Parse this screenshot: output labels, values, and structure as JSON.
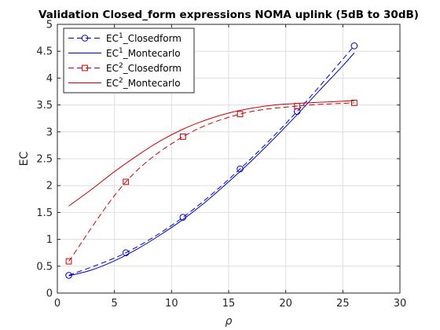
{
  "chart_data": {
    "type": "line",
    "title": "Validation Closed_form expressions NOMA uplink (5dB to 30dB)",
    "xlabel": "ρ",
    "ylabel": "EC",
    "xlim": [
      0,
      30
    ],
    "ylim": [
      0,
      5
    ],
    "xticks": [
      "0",
      "5",
      "10",
      "15",
      "20",
      "25",
      "30"
    ],
    "yticks": [
      "0",
      "0.5",
      "1",
      "1.5",
      "2",
      "2.5",
      "3",
      "3.5",
      "4",
      "4.5",
      "5"
    ],
    "grid": true,
    "legend_position": "top-left",
    "series": [
      {
        "name": "EC1_Closedform",
        "legend_base": "EC",
        "legend_sup": "1",
        "legend_suffix": "_Closedform",
        "color": "#0000cc",
        "line": "dashed",
        "marker": "circle",
        "x": [
          1,
          6,
          11,
          16,
          21,
          26
        ],
        "y": [
          0.33,
          0.75,
          1.41,
          2.31,
          3.38,
          4.6
        ]
      },
      {
        "name": "EC1_Montecarlo",
        "legend_base": "EC",
        "legend_sup": "1",
        "legend_suffix": "_Montecarlo",
        "color": "#0000cc",
        "line": "solid",
        "marker": "none",
        "x": [
          1,
          3,
          5,
          7,
          9,
          11,
          13,
          15,
          17,
          19,
          21,
          23,
          25,
          26
        ],
        "y": [
          0.32,
          0.43,
          0.6,
          0.82,
          1.08,
          1.37,
          1.7,
          2.07,
          2.46,
          2.88,
          3.32,
          3.78,
          4.23,
          4.47
        ]
      },
      {
        "name": "EC2_Closedform",
        "legend_base": "EC",
        "legend_sup": "2",
        "legend_suffix": "_Closedform",
        "color": "#cc0000",
        "line": "dashed",
        "marker": "square",
        "x": [
          1,
          6,
          11,
          16,
          21,
          26
        ],
        "y": [
          0.59,
          2.07,
          2.91,
          3.33,
          3.48,
          3.54
        ]
      },
      {
        "name": "EC2_Montecarlo",
        "legend_base": "EC",
        "legend_sup": "2",
        "legend_suffix": "_Montecarlo",
        "color": "#cc0000",
        "line": "solid",
        "marker": "none",
        "x": [
          1,
          3,
          5,
          7,
          9,
          11,
          13,
          15,
          17,
          19,
          21,
          23,
          25,
          26
        ],
        "y": [
          1.62,
          1.93,
          2.26,
          2.56,
          2.83,
          3.05,
          3.22,
          3.35,
          3.44,
          3.5,
          3.53,
          3.55,
          3.57,
          3.58
        ]
      }
    ]
  }
}
